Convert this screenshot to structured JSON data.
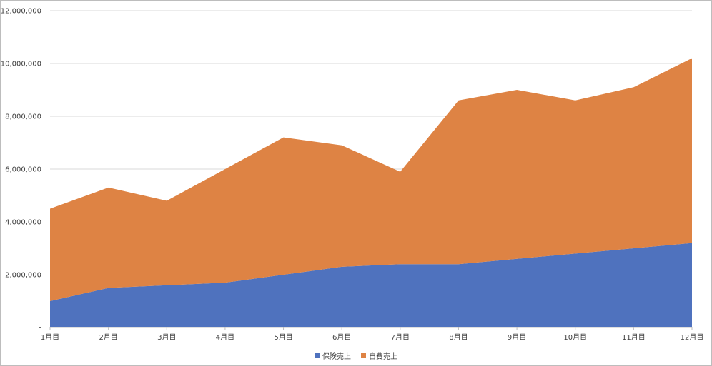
{
  "chart_data": {
    "type": "area",
    "stacked": true,
    "categories": [
      "1月目",
      "2月目",
      "3月目",
      "4月目",
      "5月目",
      "6月目",
      "7月目",
      "8月目",
      "9月目",
      "10月目",
      "11月目",
      "12月目"
    ],
    "series": [
      {
        "name": "保険売上",
        "color": "#4f72be",
        "values": [
          1000000,
          1500000,
          1600000,
          1700000,
          2000000,
          2300000,
          2400000,
          2400000,
          2600000,
          2800000,
          3000000,
          3200000
        ]
      },
      {
        "name": "自費売上",
        "color": "#de8344",
        "values": [
          3500000,
          3800000,
          3200000,
          4300000,
          5200000,
          4600000,
          3500000,
          6200000,
          6400000,
          5800000,
          6100000,
          7000000
        ]
      }
    ],
    "ylim": [
      0,
      12000000
    ],
    "yticks": [
      0,
      2000000,
      4000000,
      6000000,
      8000000,
      10000000,
      12000000
    ],
    "ytick_labels": [
      "-",
      "2,000,000",
      "4,000,000",
      "6,000,000",
      "8,000,000",
      "10,000,000",
      "12,000,000"
    ],
    "grid": true,
    "legend_position": "bottom"
  }
}
